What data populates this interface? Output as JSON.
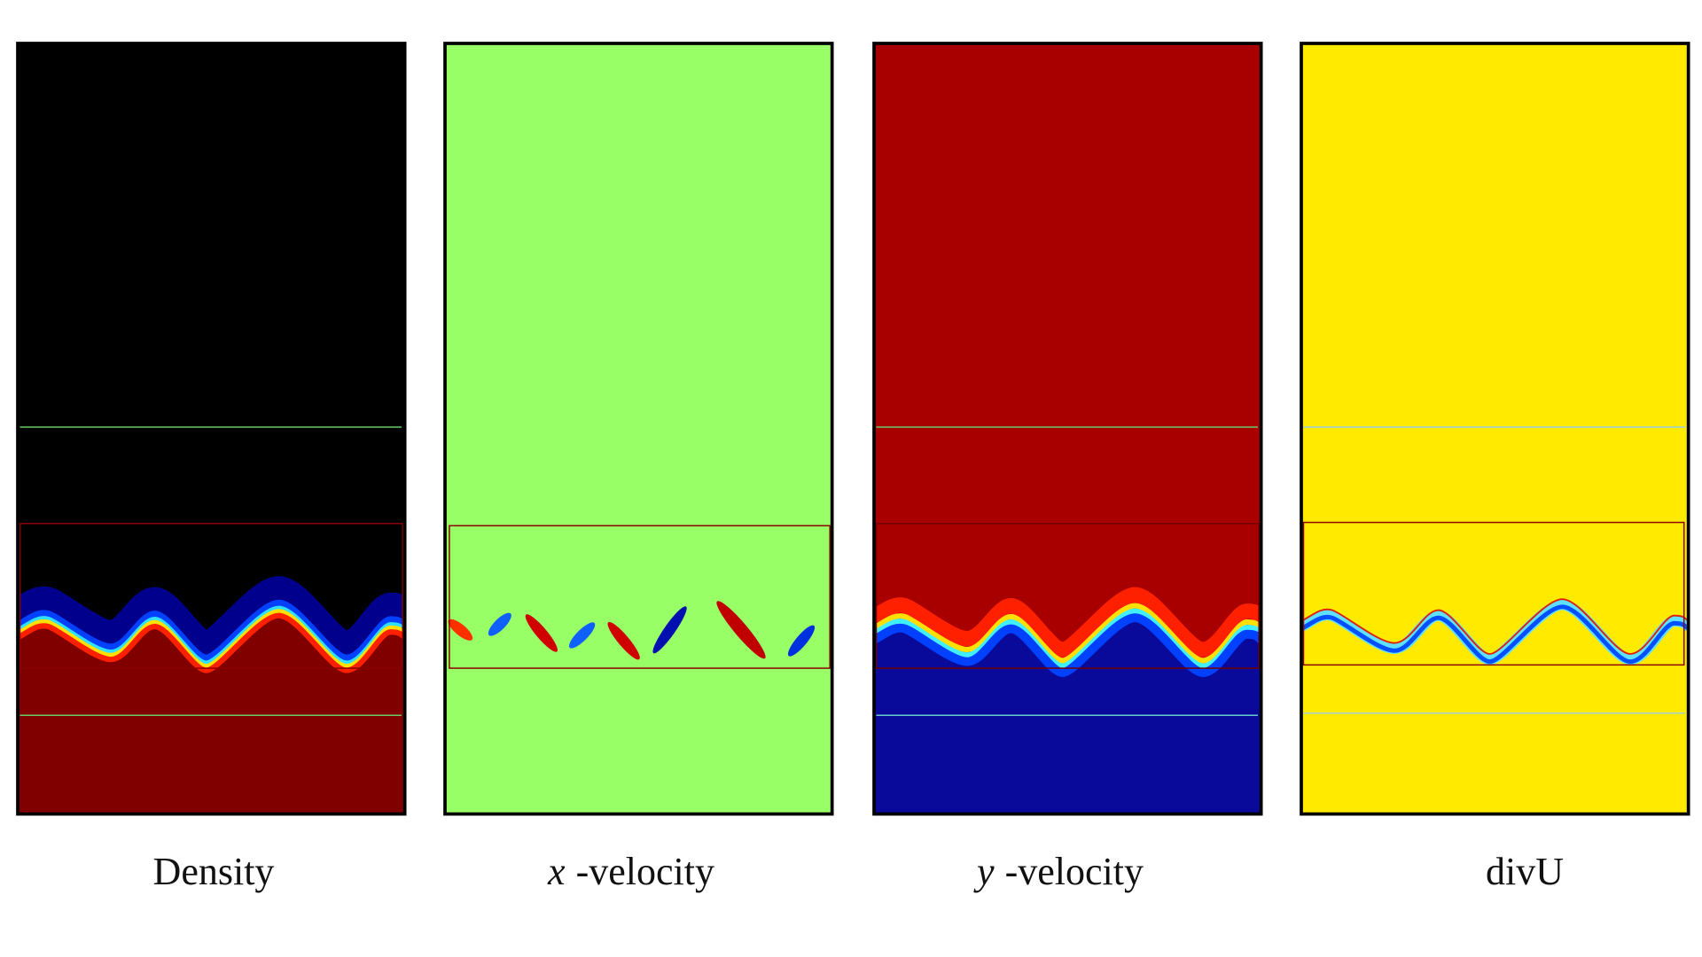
{
  "panels": [
    {
      "label": {
        "text": "Density"
      }
    },
    {
      "label": {
        "var": "x",
        "text": "-velocity"
      }
    },
    {
      "label": {
        "var": "y",
        "text": "-velocity"
      }
    },
    {
      "label": {
        "text": "divU"
      }
    }
  ]
}
